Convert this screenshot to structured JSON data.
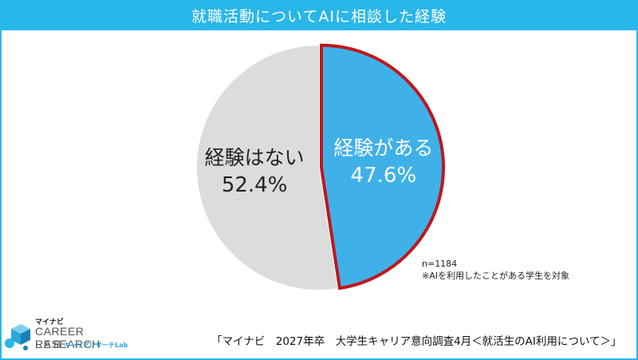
{
  "header": {
    "title": "就職活動についてAIに相談した経験"
  },
  "chart_data": {
    "type": "pie",
    "title": "就職活動についてAIに相談した経験",
    "slices": [
      {
        "label": "経験がある",
        "value": 47.6,
        "value_label": "47.6%",
        "color": "#3fb1e8",
        "border": "#c0161c"
      },
      {
        "label": "経験はない",
        "value": 52.4,
        "value_label": "52.4%",
        "color": "#dcdcdc"
      }
    ],
    "start": "12 o'clock, clockwise",
    "legend": "none"
  },
  "note": {
    "sample": "n=1184",
    "target": "※AIを利用したことがある学生を対象"
  },
  "source": "「マイナビ　2027年卒　大学生キャリア意向調査4月＜就活生のAI利用について＞」",
  "logo": {
    "small": "マイナビ",
    "main": "CAREER RESEARCH",
    "lab": "LAB",
    "kana": "キャリアリサーチLab"
  }
}
